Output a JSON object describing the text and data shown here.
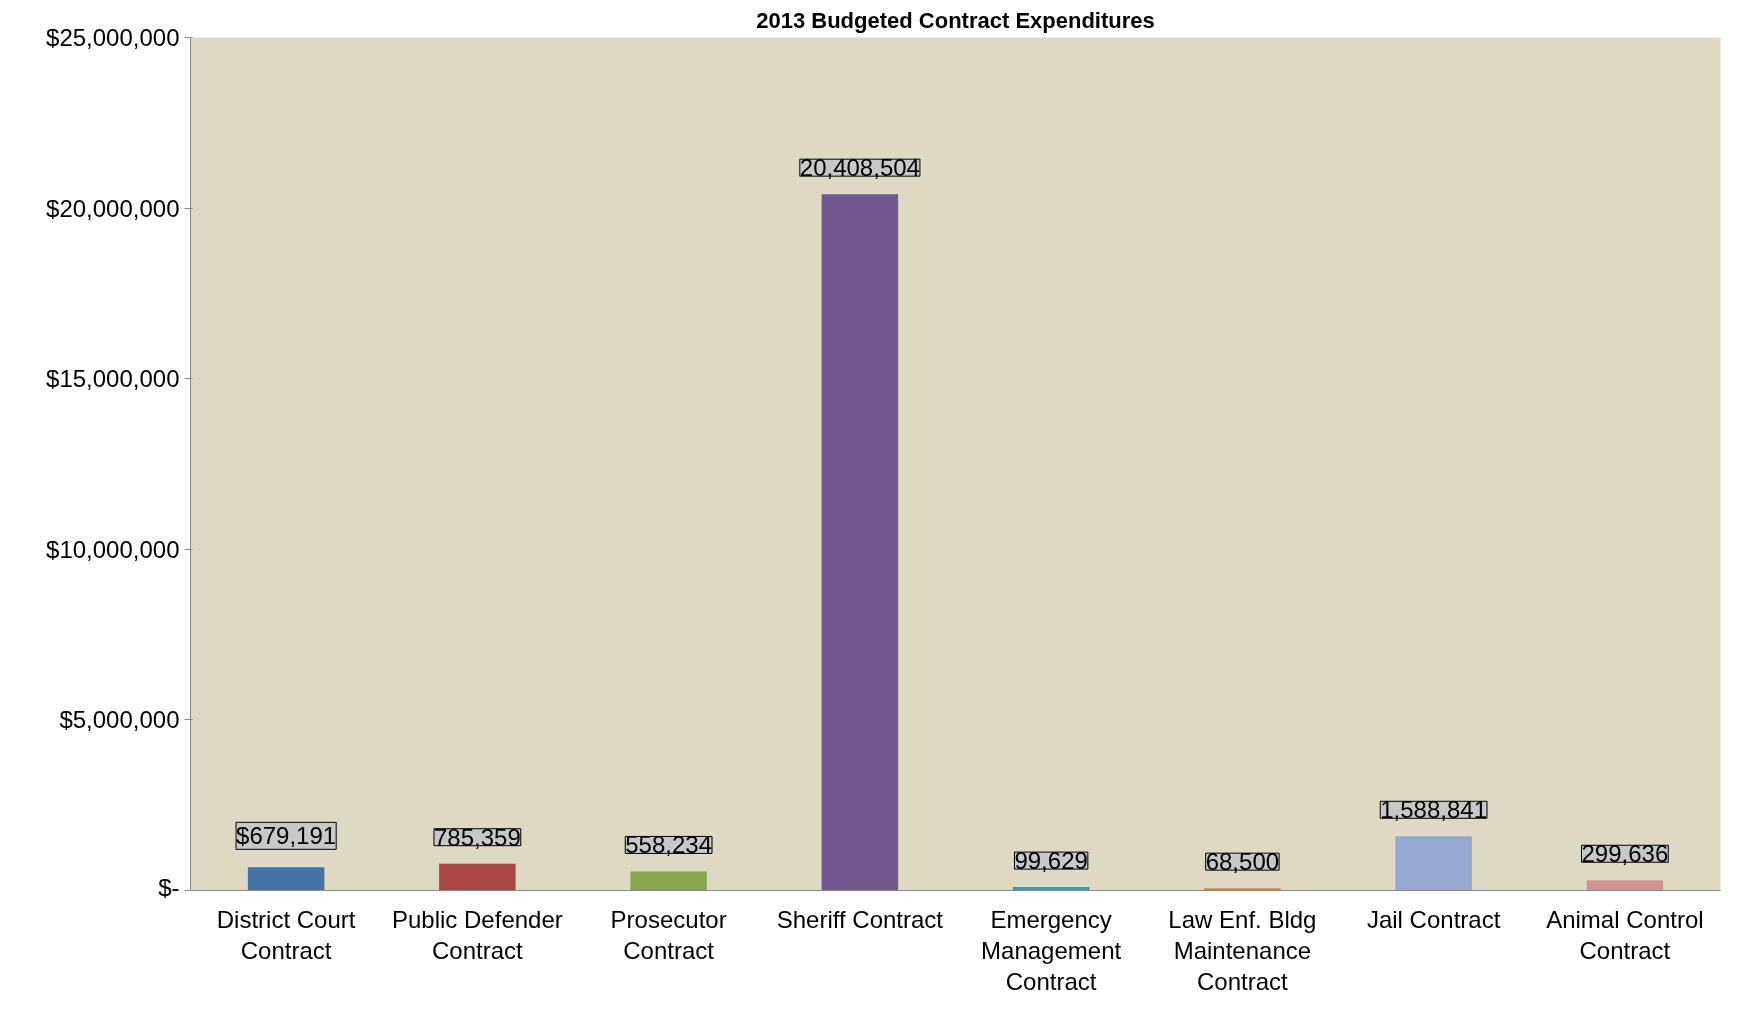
{
  "chart_data": {
    "type": "bar",
    "title": "2013 Budgeted Contract Expenditures",
    "categories": [
      "District Court\nContract",
      "Public Defender\nContract",
      "Prosecutor\nContract",
      "Sheriff Contract",
      "Emergency\nManagement\nContract",
      "Law Enf. Bldg\nMaintenance\nContract",
      "Jail Contract",
      "Animal Control\nContract"
    ],
    "values": [
      679191,
      785359,
      558234,
      20408504,
      99629,
      68500,
      1588841,
      299636
    ],
    "colors": [
      "#4572a7",
      "#aa4643",
      "#89a54e",
      "#71588f",
      "#4198af",
      "#db843d",
      "#93a9cf",
      "#d19392"
    ],
    "value_labels": [
      "$679,191",
      "785,359",
      "558,234",
      "20,408,504",
      "99,629",
      "68,500",
      "1,588,841",
      "299,636"
    ],
    "ylim": [
      0,
      25000000
    ],
    "yticks": [
      {
        "value": 0,
        "label": "$-"
      },
      {
        "value": 5000000,
        "label": "$5,000,000"
      },
      {
        "value": 10000000,
        "label": "$10,000,000"
      },
      {
        "value": 15000000,
        "label": "$15,000,000"
      },
      {
        "value": 20000000,
        "label": "$20,000,000"
      },
      {
        "value": 25000000,
        "label": "$25,000,000"
      }
    ],
    "grid": false
  }
}
